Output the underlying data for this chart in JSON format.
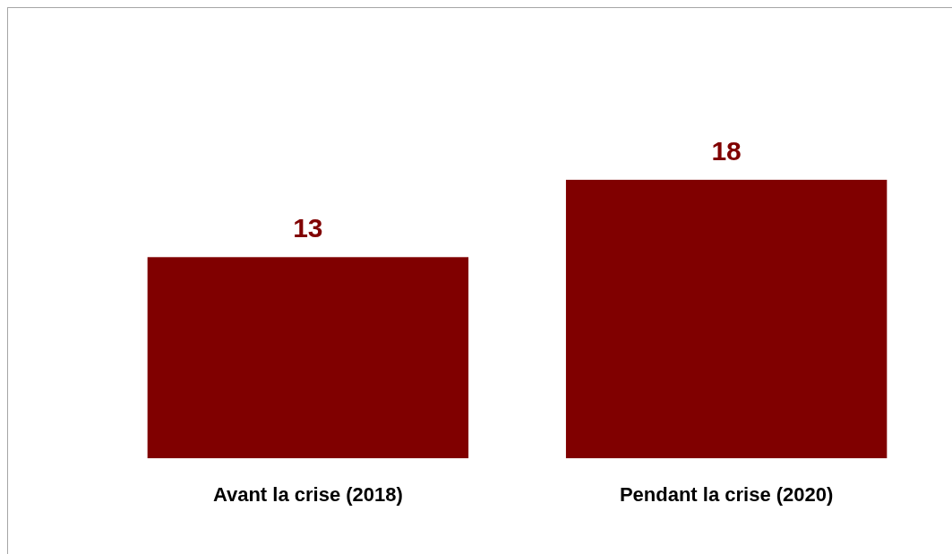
{
  "chart_data": {
    "type": "bar",
    "categories": [
      "Avant la crise (2018)",
      "Pendant la crise (2020)"
    ],
    "values": [
      13,
      18
    ],
    "color": "#800000",
    "data_labels": true
  }
}
